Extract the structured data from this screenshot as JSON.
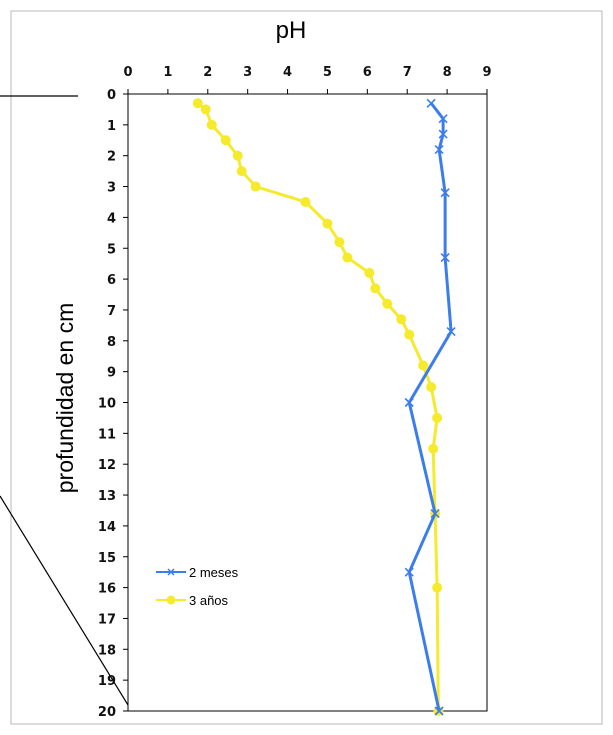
{
  "chart_data": {
    "type": "line",
    "title": "pH",
    "xlabel": "pH",
    "ylabel": "profundidad en cm",
    "xlim": [
      0,
      9
    ],
    "ylim": [
      0,
      20
    ],
    "x_axis_position": "top",
    "y_inverted": true,
    "x_ticks": [
      "0",
      "1",
      "2",
      "3",
      "4",
      "5",
      "6",
      "7",
      "8",
      "9"
    ],
    "y_ticks": [
      "0",
      "1",
      "2",
      "3",
      "4",
      "5",
      "6",
      "7",
      "8",
      "9",
      "10",
      "11",
      "12",
      "13",
      "14",
      "15",
      "16",
      "17",
      "18",
      "19",
      "20"
    ],
    "grid": false,
    "legend_position": "bottom-left",
    "series": [
      {
        "name": "2 meses",
        "color": "#3b7ded",
        "marker": "x",
        "points": [
          {
            "ph": 7.6,
            "depth": 0.3
          },
          {
            "ph": 7.9,
            "depth": 0.8
          },
          {
            "ph": 7.9,
            "depth": 1.3
          },
          {
            "ph": 7.8,
            "depth": 1.8
          },
          {
            "ph": 7.95,
            "depth": 3.2
          },
          {
            "ph": 7.95,
            "depth": 5.3
          },
          {
            "ph": 8.1,
            "depth": 7.7
          },
          {
            "ph": 7.05,
            "depth": 10.0
          },
          {
            "ph": 7.7,
            "depth": 13.6
          },
          {
            "ph": 7.05,
            "depth": 15.5
          },
          {
            "ph": 7.8,
            "depth": 20.0
          }
        ]
      },
      {
        "name": "3 años",
        "color": "#f5ea2c",
        "marker": "circle",
        "points": [
          {
            "ph": 1.75,
            "depth": 0.3
          },
          {
            "ph": 1.95,
            "depth": 0.5
          },
          {
            "ph": 2.1,
            "depth": 1.0
          },
          {
            "ph": 2.45,
            "depth": 1.5
          },
          {
            "ph": 2.75,
            "depth": 2.0
          },
          {
            "ph": 2.85,
            "depth": 2.5
          },
          {
            "ph": 3.2,
            "depth": 3.0
          },
          {
            "ph": 4.45,
            "depth": 3.5
          },
          {
            "ph": 5.0,
            "depth": 4.2
          },
          {
            "ph": 5.3,
            "depth": 4.8
          },
          {
            "ph": 5.5,
            "depth": 5.3
          },
          {
            "ph": 6.05,
            "depth": 5.8
          },
          {
            "ph": 6.2,
            "depth": 6.3
          },
          {
            "ph": 6.5,
            "depth": 6.8
          },
          {
            "ph": 6.85,
            "depth": 7.3
          },
          {
            "ph": 7.05,
            "depth": 7.8
          },
          {
            "ph": 7.4,
            "depth": 8.8
          },
          {
            "ph": 7.6,
            "depth": 9.5
          },
          {
            "ph": 7.75,
            "depth": 10.5
          },
          {
            "ph": 7.65,
            "depth": 11.5
          },
          {
            "ph": 7.7,
            "depth": 13.6
          },
          {
            "ph": 7.75,
            "depth": 16.0
          },
          {
            "ph": 7.78,
            "depth": 20.0
          }
        ]
      }
    ]
  }
}
